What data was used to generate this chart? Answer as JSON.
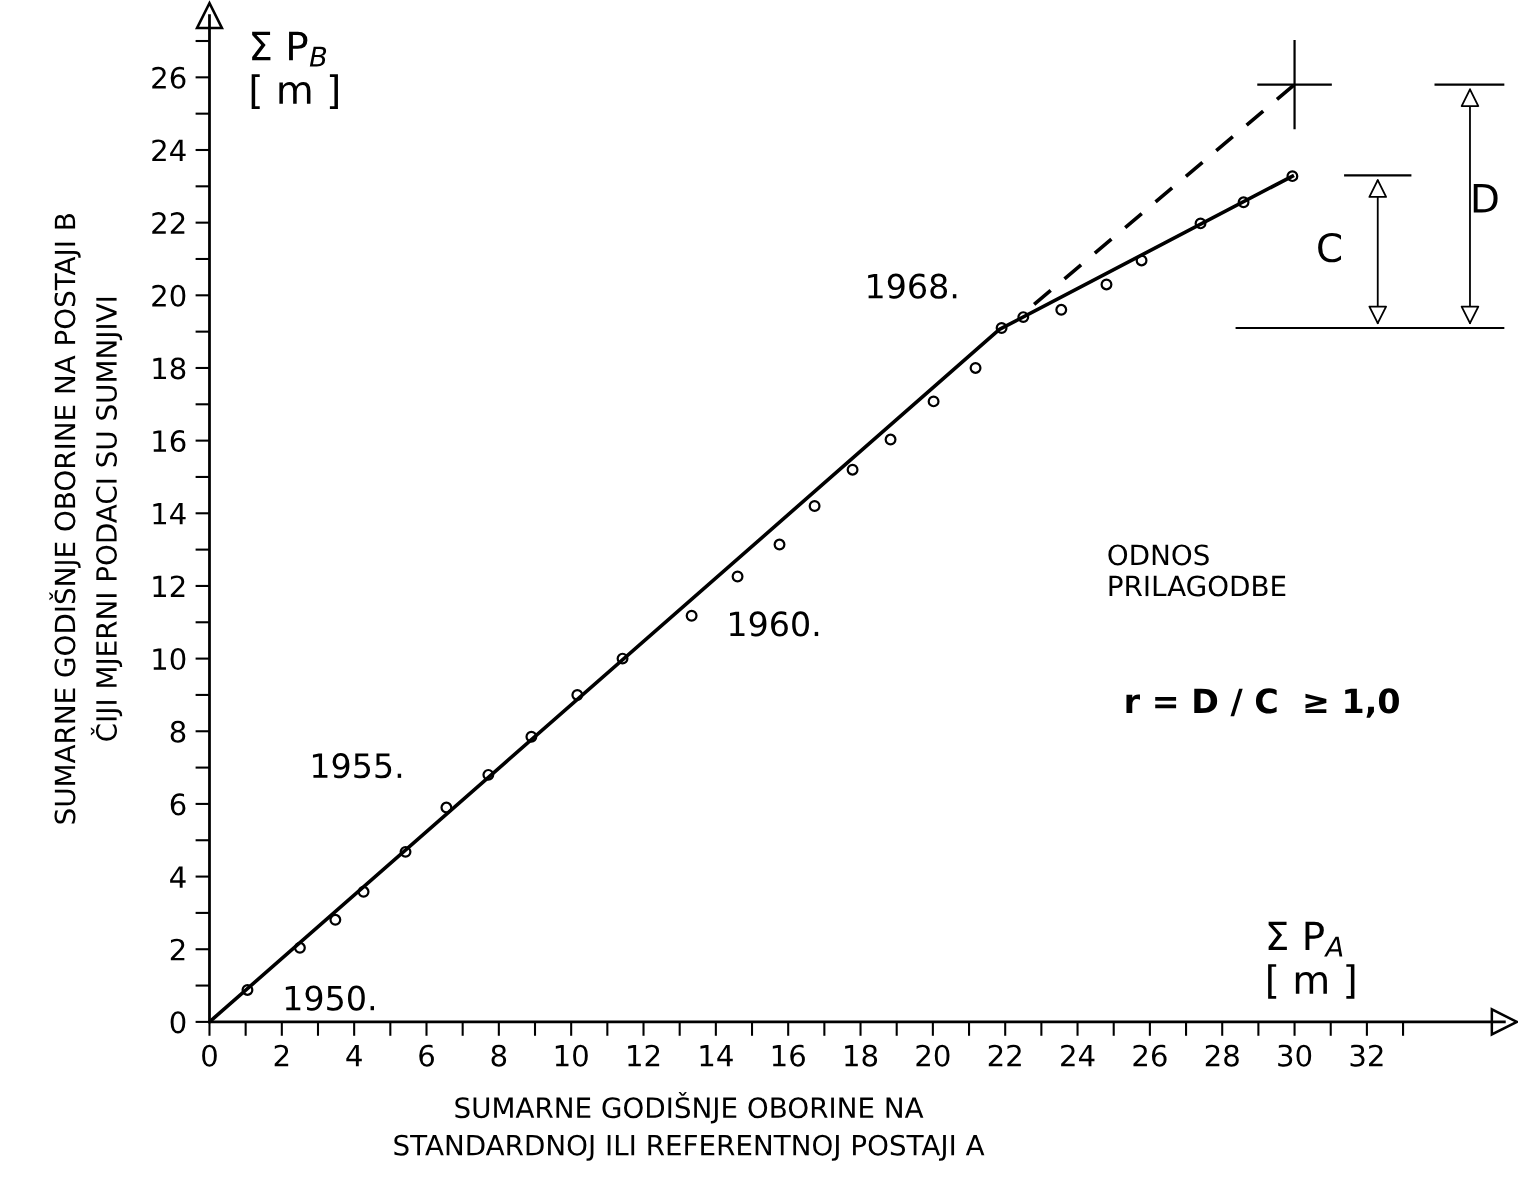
{
  "chart_data": {
    "type": "scatter",
    "xlabel": "SUMARNE GODIŠNJE OBORINE NA\nSTANDARDNOJ ILI REFERENTNOJ POSTAJI A",
    "ylabel": "SUMARNE GODIŠNJE OBORINE NA POSTAJI B\nČIJI MJERNI PODACI SU SUMNJIVI",
    "xlim": [
      0,
      35.8
    ],
    "ylim": [
      0,
      27.7
    ],
    "xticks": [
      0,
      {
        "value": 1,
        "label": null
      },
      2,
      {
        "value": 3,
        "label": null
      },
      4,
      {
        "value": 5,
        "label": null
      },
      6,
      {
        "value": 7,
        "label": null
      },
      8,
      {
        "value": 9,
        "label": null
      },
      10,
      {
        "value": 11,
        "label": null
      },
      12,
      {
        "value": 13,
        "label": null
      },
      14,
      {
        "value": 15,
        "label": null
      },
      16,
      {
        "value": 17,
        "label": null
      },
      18,
      {
        "value": 19,
        "label": null
      },
      20,
      {
        "value": 21,
        "label": null
      },
      22,
      {
        "value": 23,
        "label": null
      },
      24,
      {
        "value": 25,
        "label": null
      },
      26,
      {
        "value": 27,
        "label": null
      },
      28,
      {
        "value": 29,
        "label": null
      },
      30,
      {
        "value": 31,
        "label": null
      },
      32,
      {
        "value": 33,
        "label": null
      }
    ],
    "yticks": [
      0,
      {
        "value": 1,
        "label": null
      },
      2,
      {
        "value": 3,
        "label": null
      },
      4,
      {
        "value": 5,
        "label": null
      },
      6,
      {
        "value": 7,
        "label": null
      },
      8,
      {
        "value": 9,
        "label": null
      },
      10,
      {
        "value": 11,
        "label": null
      },
      12,
      {
        "value": 13,
        "label": null
      },
      14,
      {
        "value": 15,
        "label": null
      },
      16,
      {
        "value": 17,
        "label": null
      },
      18,
      {
        "value": 19,
        "label": null
      },
      20,
      {
        "value": 21,
        "label": null
      },
      22,
      {
        "value": 23,
        "label": null
      },
      24,
      {
        "value": 25,
        "label": null
      },
      26,
      {
        "value": 27,
        "label": null
      }
    ],
    "grid": false,
    "series": [
      {
        "marker": "circle",
        "color": "#000000",
        "x": [
          1.05,
          2.5,
          3.48,
          4.26,
          5.42,
          6.55,
          7.71,
          8.9,
          10.17,
          11.42,
          13.33,
          14.6,
          15.76,
          16.73,
          17.78,
          18.83,
          20.02,
          21.18,
          21.9,
          22.5,
          23.55,
          24.8,
          25.77,
          27.4,
          28.59,
          29.94
        ],
        "values": [
          0.88,
          2.04,
          2.81,
          3.58,
          4.68,
          5.9,
          6.8,
          7.85,
          9.0,
          10.0,
          11.18,
          12.26,
          13.14,
          14.2,
          15.2,
          16.03,
          17.08,
          18.0,
          19.1,
          19.4,
          19.6,
          20.3,
          20.96,
          21.98,
          22.56,
          23.28
        ]
      },
      {
        "type": "line",
        "marker": "none",
        "line_style": "solid",
        "color": "#000000",
        "x": [
          0,
          21.84,
          29.94
        ],
        "values": [
          0,
          19.06,
          23.28
        ]
      },
      {
        "type": "line",
        "marker": "none",
        "line_style": "dashed",
        "color": "#000000",
        "x": [
          22.8,
          30
        ],
        "values": [
          19.75,
          25.8
        ]
      },
      {
        "type": "line",
        "marker": "none",
        "line_style": "solid",
        "color": "#000000",
        "x": [
          29,
          31
        ],
        "values": [
          25.8,
          25.8
        ]
      },
      {
        "type": "line",
        "marker": "none",
        "line_style": "solid",
        "color": "#000000",
        "x": [
          30,
          30
        ],
        "values": [
          24.6,
          27
        ]
      },
      {
        "type": "line",
        "marker": "none",
        "line_style": "solid",
        "color": "#000000",
        "x": [
          28.4,
          35.8
        ],
        "values": [
          19.1,
          19.1
        ]
      },
      {
        "type": "line",
        "marker": "none",
        "line_style": "solid",
        "color": "#000000",
        "x": [
          31.4,
          33.2
        ],
        "values": [
          23.3,
          23.3
        ]
      },
      {
        "type": "line",
        "marker": "none",
        "line_style": "solid",
        "color": "#000000",
        "x": [
          33.9,
          35.8
        ],
        "values": [
          25.8,
          25.8
        ]
      }
    ],
    "annotations": [
      {
        "text": "1950.",
        "x": 1.05,
        "y": 0.88
      },
      {
        "text": "1955.",
        "x": 6.55,
        "y": 5.9
      },
      {
        "text": "1960.",
        "x": 13.33,
        "y": 11.18
      },
      {
        "text": "1968.",
        "x": 21.9,
        "y": 19.1
      },
      "C",
      "D",
      "Σ P$_{B}$\n[ m ]",
      "Σ P$_{A}$\n[ m ]",
      "ODNOS\nPRILAGODBE",
      "r = D / C  ≥ 1,0"
    ]
  }
}
